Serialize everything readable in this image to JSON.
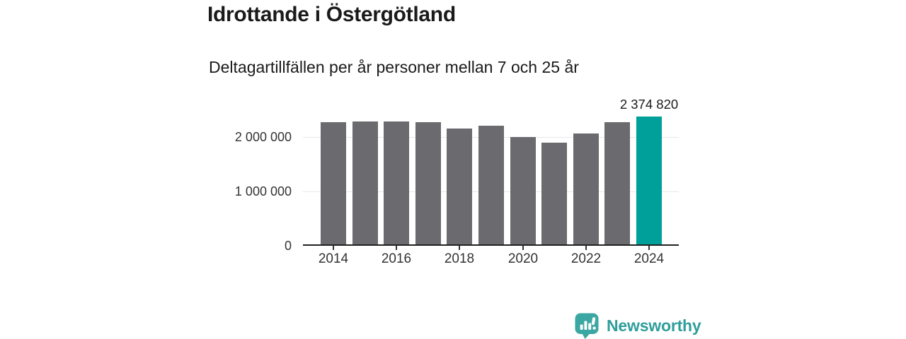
{
  "page": {
    "background": "#ffffff"
  },
  "chart_data": {
    "type": "bar",
    "title": "Idrottande i Östergötland",
    "subtitle": "Deltagartillfällen per år personer mellan 7 och 25 år",
    "categories": [
      "2014",
      "2015",
      "2016",
      "2017",
      "2018",
      "2019",
      "2020",
      "2021",
      "2022",
      "2023",
      "2024"
    ],
    "values": [
      2270000,
      2290000,
      2290000,
      2270000,
      2160000,
      2210000,
      2000000,
      1900000,
      2060000,
      2270000,
      2374820
    ],
    "bar_color": "#6b6b6f",
    "highlight": {
      "category": "2024",
      "index": 10,
      "label": "2 374 820",
      "color": "#00a09a"
    },
    "x_tick_labels": [
      "2014",
      "2016",
      "2018",
      "2020",
      "2022",
      "2024"
    ],
    "y_ticks": [
      {
        "value": 0,
        "label": "0"
      },
      {
        "value": 1000000,
        "label": "1 000 000"
      },
      {
        "value": 2000000,
        "label": "2 000 000"
      }
    ],
    "ylim": [
      0,
      2450000
    ],
    "grid": "horizontal",
    "legend": "none",
    "axis_color": "#222222",
    "gridline_color": "#e7e7e7",
    "tick_label_color": "#333333"
  },
  "footer": {
    "brand": "Newsworthy",
    "brand_color": "#2f9e9b",
    "brand_icon": "speech-bubble-bar-chart"
  }
}
